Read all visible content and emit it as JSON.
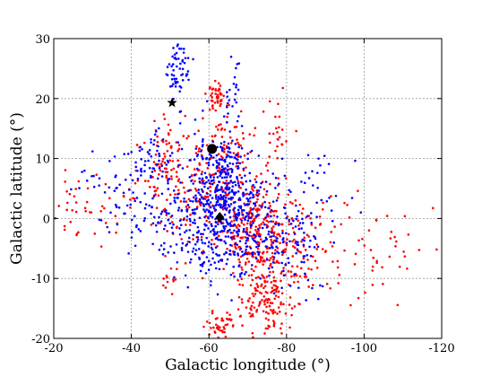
{
  "chart_data": {
    "type": "scatter",
    "title": "",
    "xlabel": "Galactic longitude (°)",
    "ylabel": "Galactic latitude (°)",
    "xlim": [
      -20,
      -120
    ],
    "ylim": [
      -20,
      30
    ],
    "xticks": [
      -20,
      -40,
      -60,
      -80,
      -100,
      -120
    ],
    "yticks": [
      -20,
      -10,
      0,
      10,
      20,
      30
    ],
    "xtick_labels": [
      "-20",
      "-40",
      "-60",
      "-80",
      "-100",
      "-120"
    ],
    "ytick_labels": [
      "-20",
      "-10",
      "0",
      "10",
      "20",
      "30"
    ],
    "grid": true,
    "colors": {
      "red": "#ff0000",
      "blue": "#0000ff",
      "marker": "#000000"
    },
    "series": [
      {
        "color": "red",
        "clusters": [
          {
            "cx": -72,
            "cy": -2,
            "sx": 5,
            "sy": 4,
            "n": 260
          },
          {
            "cx": -75,
            "cy": -14,
            "sx": 4,
            "sy": 3.5,
            "n": 150
          },
          {
            "cx": -62,
            "cy": 20,
            "sx": 1.2,
            "sy": 1.2,
            "n": 45
          },
          {
            "cx": -64,
            "cy": 10,
            "sx": 5,
            "sy": 3.5,
            "n": 130
          },
          {
            "cx": -48,
            "cy": 8,
            "sx": 4,
            "sy": 5,
            "n": 90
          },
          {
            "cx": -85,
            "cy": -5,
            "sx": 8,
            "sy": 5,
            "n": 120
          },
          {
            "cx": -30,
            "cy": 2,
            "sx": 5,
            "sy": 3,
            "n": 45
          },
          {
            "cx": -63,
            "cy": -18,
            "sx": 2.5,
            "sy": 1.2,
            "n": 45
          },
          {
            "cx": -56,
            "cy": 3,
            "sx": 4,
            "sy": 4,
            "n": 80
          },
          {
            "cx": -78,
            "cy": 13,
            "sx": 1.5,
            "sy": 4,
            "n": 25
          },
          {
            "cx": -105,
            "cy": -5,
            "sx": 8,
            "sy": 3,
            "n": 30
          },
          {
            "cx": -50,
            "cy": -10,
            "sx": 1,
            "sy": 1,
            "n": 12
          }
        ]
      },
      {
        "color": "blue",
        "clusters": [
          {
            "cx": -63,
            "cy": 5,
            "sx": 4,
            "sy": 5,
            "n": 300
          },
          {
            "cx": -70,
            "cy": 0,
            "sx": 6,
            "sy": 4,
            "n": 200
          },
          {
            "cx": -60,
            "cy": -4,
            "sx": 4,
            "sy": 4,
            "n": 120
          },
          {
            "cx": -52,
            "cy": 25,
            "sx": 1.5,
            "sy": 3,
            "n": 60
          },
          {
            "cx": -45,
            "cy": 10,
            "sx": 4,
            "sy": 3,
            "n": 60
          },
          {
            "cx": -80,
            "cy": -5,
            "sx": 5,
            "sy": 4,
            "n": 80
          },
          {
            "cx": -48,
            "cy": 1,
            "sx": 5,
            "sy": 4,
            "n": 80
          },
          {
            "cx": -35,
            "cy": 5,
            "sx": 4,
            "sy": 4,
            "n": 35
          },
          {
            "cx": -88,
            "cy": 5,
            "sx": 4,
            "sy": 3,
            "n": 30
          },
          {
            "cx": -66,
            "cy": 22,
            "sx": 1,
            "sy": 3,
            "n": 20
          }
        ]
      }
    ],
    "markers": [
      {
        "shape": "star",
        "x": -50.5,
        "y": 19.3
      },
      {
        "shape": "circle",
        "x": -60.8,
        "y": 11.6
      },
      {
        "shape": "diamond",
        "x": -62.8,
        "y": 0.2
      }
    ]
  }
}
